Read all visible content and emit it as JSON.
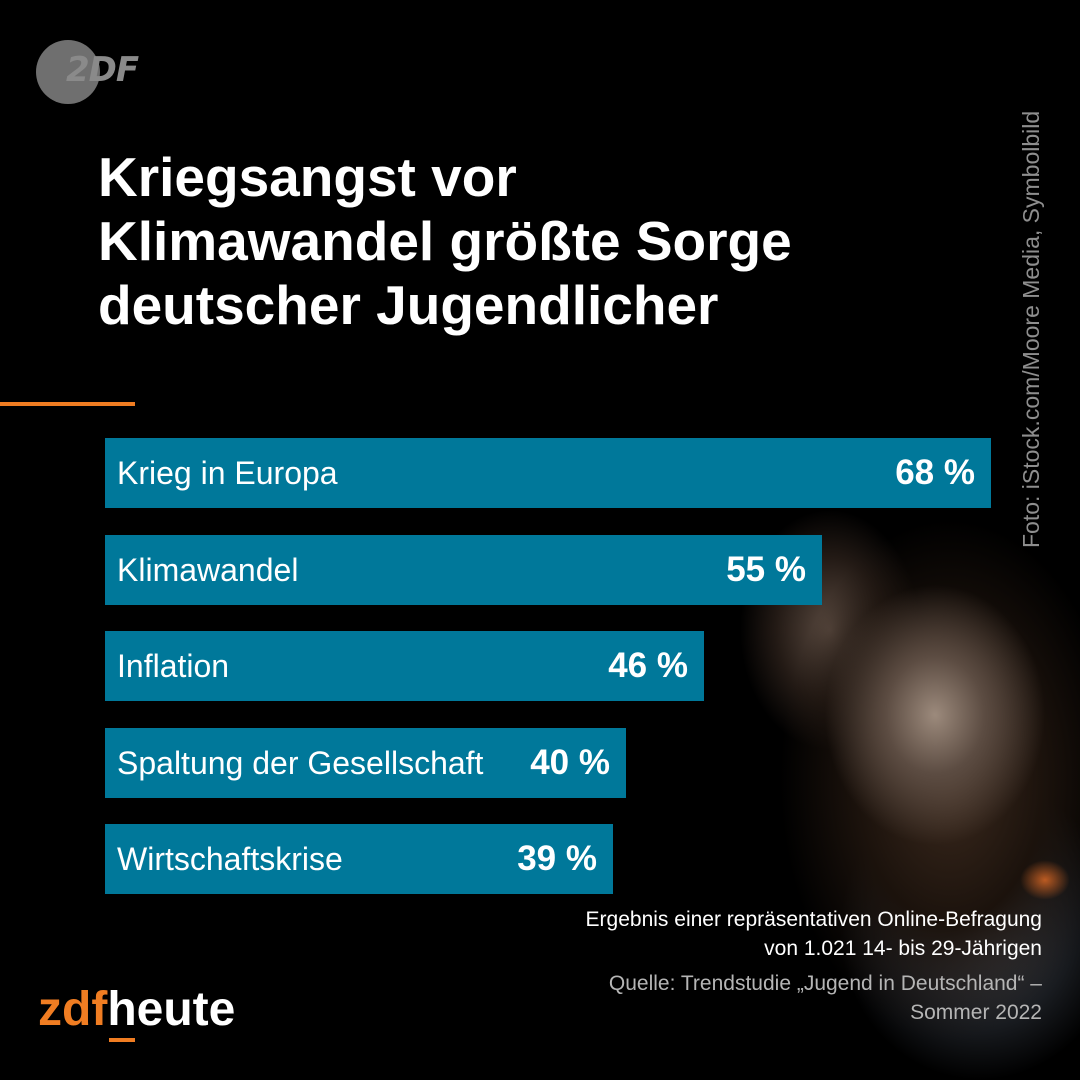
{
  "logo": {
    "text": "2DF"
  },
  "headline": {
    "lines": [
      "Kriegsangst vor",
      "Klimawandel größte Sorge",
      "deutscher Jugendlicher"
    ]
  },
  "photo_credit": "Foto: iStock.com/Moore Media, Symbolbild",
  "colors": {
    "bar": "#00789a",
    "accent": "#f07d22",
    "background": "#000000"
  },
  "chart_data": {
    "type": "bar",
    "orientation": "horizontal",
    "categories": [
      "Krieg in Europa",
      "Klimawandel",
      "Inflation",
      "Spaltung der Gesellschaft",
      "Wirtschaftskrise"
    ],
    "values": [
      68,
      55,
      46,
      40,
      39
    ],
    "value_labels": [
      "68 %",
      "55 %",
      "46 %",
      "40 %",
      "39 %"
    ],
    "unit": "%",
    "xlim": [
      0,
      68
    ],
    "grid": false,
    "legend": "none"
  },
  "footnote": {
    "survey": [
      "Ergebnis einer repräsentativen Online-Befragung",
      "von 1.021 14- bis 29-Jährigen"
    ],
    "source": [
      "Quelle: Trendstudie „Jugend in Deutschland“ –",
      "Sommer 2022"
    ]
  },
  "brand": {
    "part1": "zdf",
    "part2": "heute"
  }
}
